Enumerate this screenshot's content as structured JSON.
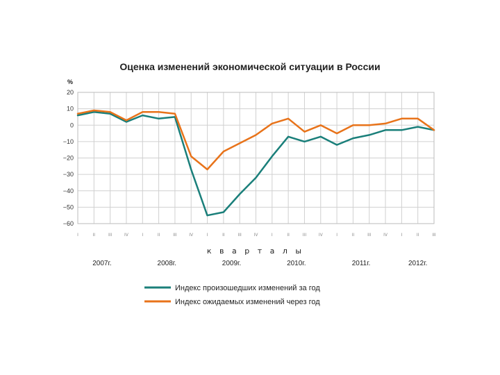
{
  "chart_data": {
    "type": "line",
    "title": "Оценка изменений экономической ситуации в России",
    "ylabel": "%",
    "xlabel": "к в а р т а л ы",
    "ylim": [
      -60,
      20
    ],
    "yticks": [
      20,
      10,
      0,
      -10,
      -20,
      -30,
      -40,
      -50,
      -60
    ],
    "ytick_labels": [
      "20",
      "10",
      "0",
      "−10",
      "−20",
      "−30",
      "−40",
      "−50",
      "−60"
    ],
    "categories": [
      "I",
      "II",
      "III",
      "IV",
      "I",
      "II",
      "III",
      "IV",
      "I",
      "II",
      "III",
      "IV",
      "I",
      "II",
      "III",
      "IV",
      "I",
      "II",
      "III",
      "IV",
      "I",
      "II",
      "III"
    ],
    "years": [
      {
        "label": "2007г.",
        "span": [
          0,
          3
        ]
      },
      {
        "label": "2008г.",
        "span": [
          4,
          7
        ]
      },
      {
        "label": "2009г.",
        "span": [
          8,
          11
        ]
      },
      {
        "label": "2010г.",
        "span": [
          12,
          15
        ]
      },
      {
        "label": "2011г.",
        "span": [
          16,
          19
        ]
      },
      {
        "label": "2012г.",
        "span": [
          20,
          22
        ]
      }
    ],
    "series": [
      {
        "name": "Индекс произошедших изменений за год",
        "color": "#1a7f7a",
        "values": [
          6,
          8,
          7,
          2,
          6,
          4,
          5,
          -27,
          -55,
          -53,
          -42,
          -32,
          -19,
          -7,
          -10,
          -7,
          -12,
          -8,
          -6,
          -3,
          -3,
          -1,
          -3
        ]
      },
      {
        "name": "Индекс ожидаемых изменений через год",
        "color": "#e8731a",
        "values": [
          7,
          9,
          8,
          3,
          8,
          8,
          7,
          -19,
          -27,
          -16,
          -11,
          -6,
          1,
          4,
          -4,
          0,
          -5,
          0,
          0,
          1,
          4,
          4,
          -3
        ]
      }
    ],
    "grid": true,
    "legend": "bottom"
  }
}
